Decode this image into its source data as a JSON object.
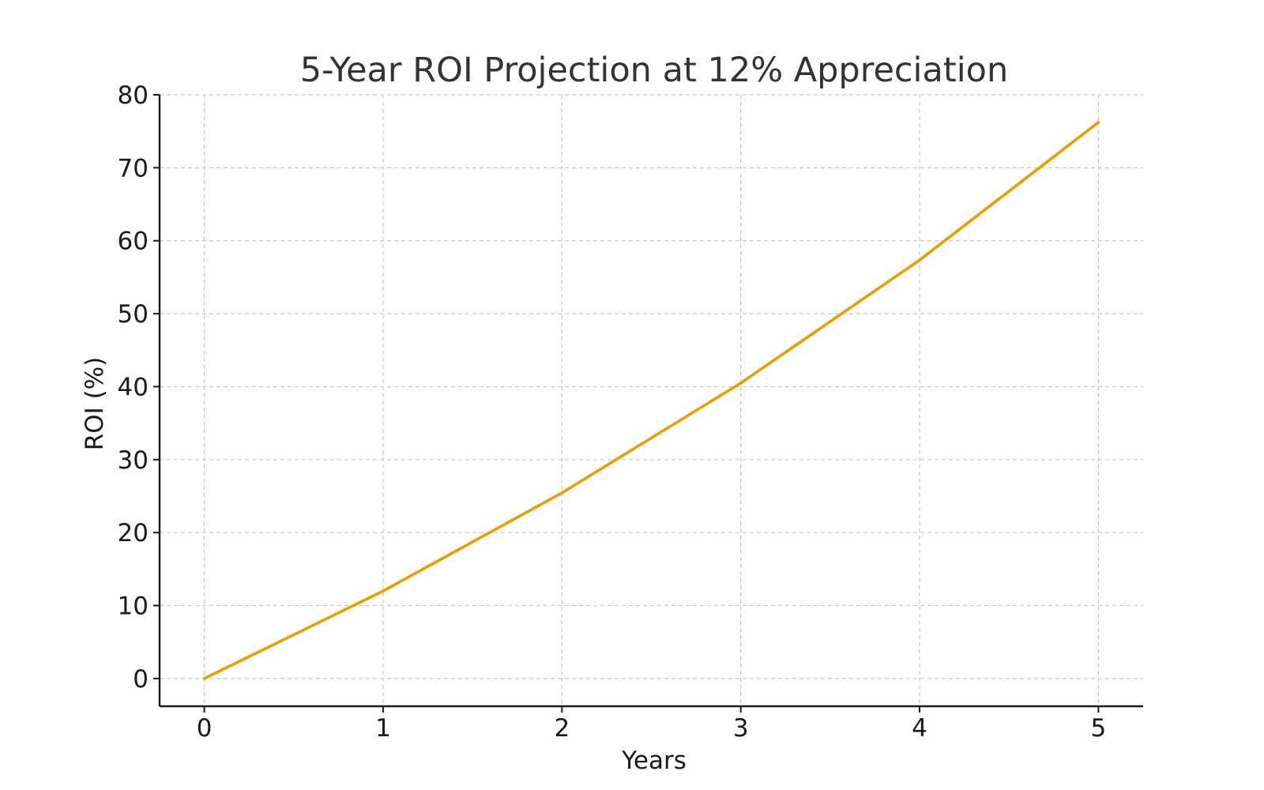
{
  "chart_data": {
    "type": "line",
    "title": "5-Year ROI Projection at 12% Appreciation",
    "xlabel": "Years",
    "ylabel": "ROI (%)",
    "x": [
      0,
      1,
      2,
      3,
      4,
      5
    ],
    "series": [
      {
        "values": [
          0,
          12,
          25.44,
          40.49,
          57.35,
          76.23
        ],
        "color": "#E69F00"
      }
    ],
    "xlim": [
      -0.25,
      5.25
    ],
    "ylim": [
      -3.8,
      80
    ],
    "xticks": [
      "0",
      "1",
      "2",
      "3",
      "4",
      "5"
    ],
    "yticks": [
      "0",
      "10",
      "20",
      "30",
      "40",
      "50",
      "60",
      "70",
      "80"
    ],
    "grid": true,
    "grid_style": "dashed",
    "legend": "none"
  }
}
